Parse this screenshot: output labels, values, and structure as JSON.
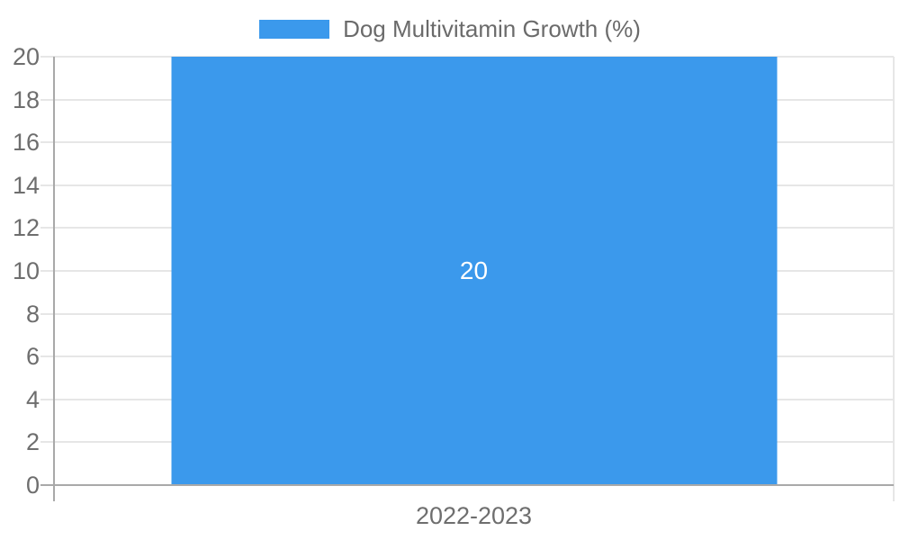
{
  "chart_data": {
    "type": "bar",
    "title": "",
    "categories": [
      "2022-2023"
    ],
    "series": [
      {
        "name": "Dog Multivitamin Growth (%)",
        "values": [
          20
        ]
      }
    ],
    "data_labels": [
      "20"
    ],
    "xlabel": "",
    "ylabel": "",
    "ylim": [
      0,
      20
    ],
    "yticks": [
      0,
      2,
      4,
      6,
      8,
      10,
      12,
      14,
      16,
      18,
      20
    ],
    "grid": true,
    "legend_position": "top",
    "colors": {
      "bar": "#3b99ec",
      "grid": "#e6e6e6",
      "axis": "#a9a9a9",
      "tick_text": "#6e6e6e",
      "legend_text": "#6b6b6b",
      "data_label_text": "#ffffff",
      "background": "#ffffff"
    }
  }
}
